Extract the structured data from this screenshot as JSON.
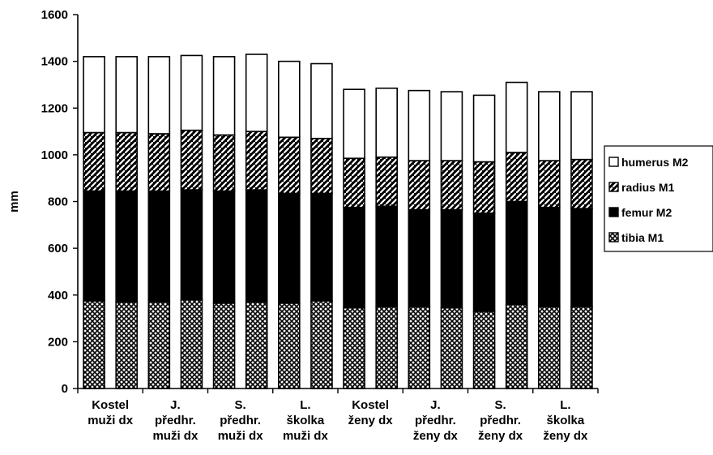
{
  "chart_data": {
    "type": "bar",
    "stacked": true,
    "ylabel": "mm",
    "ylim": [
      0,
      1600
    ],
    "yticks": [
      0,
      200,
      400,
      600,
      800,
      1000,
      1200,
      1400,
      1600
    ],
    "grid": false,
    "legend_placement": "right",
    "group_labels": [
      [
        "Kostel",
        "muži dx"
      ],
      [
        "J.",
        "předhr.",
        "muži dx"
      ],
      [
        "S.",
        "předhr.",
        "muži dx"
      ],
      [
        "L.",
        "školka",
        "muži dx"
      ],
      [
        "Kostel",
        "ženy dx"
      ],
      [
        "J.",
        "předhr.",
        "ženy dx"
      ],
      [
        "S.",
        "předhr.",
        "ženy dx"
      ],
      [
        "L.",
        "školka",
        "ženy dx"
      ]
    ],
    "series": [
      {
        "name": "tibia M1",
        "pattern": "crosshatch",
        "values": [
          375,
          370,
          370,
          380,
          365,
          370,
          365,
          375,
          345,
          350,
          350,
          345,
          330,
          360,
          350,
          350
        ]
      },
      {
        "name": "femur M2",
        "pattern": "solid",
        "values": [
          470,
          475,
          475,
          470,
          480,
          480,
          470,
          460,
          430,
          430,
          415,
          420,
          420,
          440,
          425,
          420
        ]
      },
      {
        "name": "radius M1",
        "pattern": "diagonal",
        "values": [
          250,
          250,
          245,
          255,
          240,
          250,
          240,
          235,
          210,
          210,
          210,
          210,
          220,
          210,
          200,
          210
        ]
      },
      {
        "name": "humerus M2",
        "pattern": "white",
        "values": [
          325,
          325,
          330,
          320,
          335,
          330,
          325,
          320,
          295,
          295,
          300,
          295,
          285,
          300,
          295,
          290
        ]
      }
    ]
  }
}
